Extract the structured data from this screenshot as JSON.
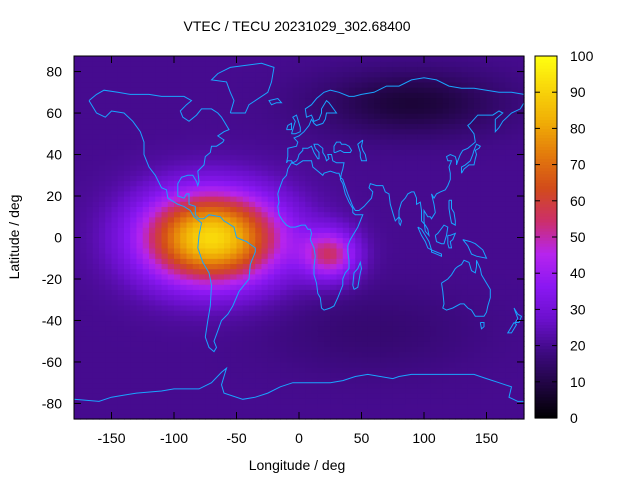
{
  "chart_data": {
    "type": "heatmap",
    "title": "VTEC / TECU 20231029_302.68400",
    "xlabel": "Longitude / deg",
    "ylabel": "Latitude / deg",
    "xlim": [
      -180,
      180
    ],
    "ylim": [
      -87.5,
      87.5
    ],
    "x_ticks": [
      -150,
      -100,
      -50,
      0,
      50,
      100,
      150
    ],
    "y_ticks": [
      -80,
      -60,
      -40,
      -20,
      0,
      20,
      40,
      60,
      80
    ],
    "colorbar": {
      "range": [
        0,
        100
      ],
      "ticks": [
        0,
        10,
        20,
        30,
        40,
        50,
        60,
        70,
        80,
        90,
        100
      ],
      "palette": [
        "#000000",
        "#1f0540",
        "#3d0a80",
        "#6b10cc",
        "#8a17f2",
        "#b624ee",
        "#cc2f6a",
        "#d24b1a",
        "#e37a0c",
        "#f0ad06",
        "#f8d50a",
        "#ffff10"
      ]
    },
    "z_units": "TECU",
    "field_model": {
      "base": 20,
      "maxima": [
        {
          "lon": -70,
          "lat": 0,
          "value": 92,
          "sigma_lon": 55,
          "sigma_lat": 22
        },
        {
          "lon": 25,
          "lat": -8,
          "value": 52,
          "sigma_lon": 22,
          "sigma_lat": 12
        }
      ],
      "minima": [
        {
          "lon": 90,
          "lat": 65,
          "value": 8,
          "sigma_lon": 70,
          "sigma_lat": 15
        },
        {
          "lon": 60,
          "lat": -45,
          "value": 16,
          "sigma_lon": 80,
          "sigma_lat": 20
        }
      ]
    },
    "overlay": "coastlines",
    "grid": false
  }
}
